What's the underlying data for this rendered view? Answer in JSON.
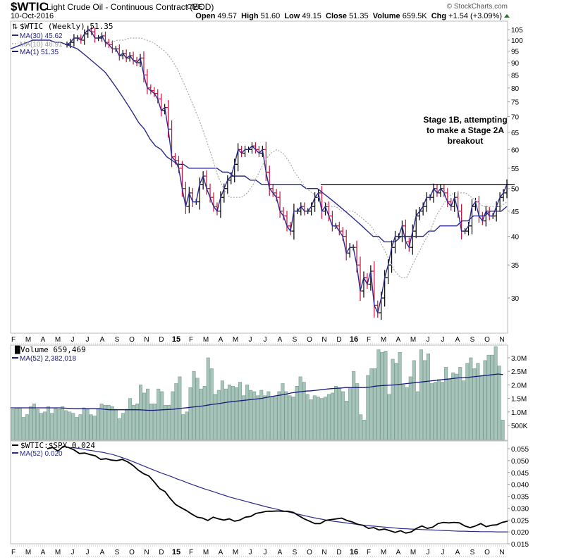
{
  "header": {
    "symbol": "$WTIC",
    "name": "Light Crude Oil - Continuous Contract (EOD)",
    "exchange": "CME",
    "date": "10-Oct-2016",
    "credit": "© StockCharts.com",
    "stats": [
      {
        "label": "Open",
        "value": "49.57"
      },
      {
        "label": "High",
        "value": "51.60"
      },
      {
        "label": "Low",
        "value": "49.15"
      },
      {
        "label": "Close",
        "value": "51.35"
      },
      {
        "label": "Volume",
        "value": "659.5K"
      },
      {
        "label": "Chg",
        "value": "+1.54 (+3.09%)"
      }
    ]
  },
  "colors": {
    "up_bar": "#000000",
    "down_bar": "#c8103c",
    "ma_line": "#2b2b8c",
    "ma10": "#aaaaaa",
    "volume_bar": "#a7c4ba",
    "volume_edge": "#7a9c90",
    "ratio_line": "#000000",
    "ratio_ma": "#2b2b8c"
  },
  "annotation": [
    "Stage 1B, attempting",
    "to make a Stage 2A",
    "breakout"
  ],
  "chart_data": [
    {
      "type": "line",
      "title": "$WTIC (Weekly) 51.35",
      "legend": [
        {
          "name": "$WTIC (Weekly) 51.35"
        },
        {
          "name": "MA(30) 45.62"
        },
        {
          "name": "MA(10) 46.91"
        },
        {
          "name": "MA(1) 51.35"
        }
      ],
      "scale": "log",
      "ylim": [
        26,
        108
      ],
      "yticks": [
        "105",
        "100",
        "95",
        "90",
        "85",
        "80",
        "75",
        "70",
        "65",
        "60",
        "55",
        "50",
        "45",
        "40",
        "35",
        "30"
      ],
      "ytick_values": [
        105,
        100,
        95,
        90,
        85,
        80,
        75,
        70,
        65,
        60,
        55,
        50,
        45,
        40,
        35,
        30
      ],
      "xticks": [
        "F",
        "M",
        "A",
        "M",
        "J",
        "J",
        "A",
        "S",
        "O",
        "N",
        "D",
        "15",
        "F",
        "M",
        "A",
        "M",
        "J",
        "J",
        "A",
        "S",
        "O",
        "N",
        "D",
        "16",
        "F",
        "M",
        "A",
        "M",
        "J",
        "J",
        "A",
        "S",
        "O",
        "N"
      ],
      "resistance": 51,
      "close": [
        98,
        99,
        101,
        101,
        100,
        103,
        105,
        104,
        101,
        101,
        102,
        99,
        98,
        96,
        96,
        93,
        94,
        92,
        93,
        91,
        90,
        92,
        85,
        80,
        79,
        78,
        76,
        72,
        73,
        66,
        58,
        57,
        55,
        50,
        46,
        49,
        47,
        47,
        51,
        53,
        50,
        48,
        46,
        45,
        48,
        50,
        52,
        53,
        56,
        60,
        59,
        60,
        60,
        61,
        60,
        59,
        60,
        54,
        50,
        49,
        48,
        45,
        44,
        42,
        41,
        45,
        45,
        46,
        45,
        45,
        46,
        48,
        49,
        45,
        46,
        44,
        42,
        42,
        41,
        40,
        37,
        38,
        38,
        35,
        31,
        33,
        32,
        34,
        29,
        28,
        30,
        33,
        35,
        38,
        40,
        40,
        42,
        39,
        38,
        41,
        44,
        45,
        46,
        48,
        48,
        50,
        49,
        50,
        49,
        47,
        46,
        48,
        45,
        41,
        41,
        42,
        46,
        47,
        44,
        43,
        45,
        44,
        44,
        46,
        48,
        49,
        51
      ],
      "ma30": [
        96,
        97,
        98,
        99,
        100,
        100,
        100,
        100,
        99,
        99,
        98,
        97,
        96,
        94,
        92,
        90,
        88,
        86,
        83,
        80,
        77,
        74,
        71,
        68,
        66,
        63,
        61,
        60,
        58,
        57,
        56,
        56,
        55,
        55,
        55,
        55,
        55,
        55,
        54,
        54,
        53,
        53,
        53,
        52,
        52,
        51,
        51,
        51,
        51,
        51,
        51,
        51,
        51,
        50,
        50,
        50,
        49,
        48,
        47,
        46,
        45,
        44,
        43,
        42,
        41,
        40,
        40,
        39,
        39,
        39,
        40,
        40,
        40,
        40,
        40,
        41,
        41,
        42,
        42,
        42,
        42,
        43,
        43,
        44,
        44,
        44,
        45,
        45,
        45,
        46
      ],
      "ma10": [
        98,
        99,
        100,
        100,
        101,
        101,
        101,
        100,
        99,
        97,
        95,
        92,
        88,
        83,
        78,
        73,
        68,
        63,
        58,
        53,
        50,
        48,
        48,
        48,
        49,
        51,
        54,
        57,
        59,
        60,
        59,
        57,
        54,
        52,
        50,
        49,
        48,
        47,
        46,
        46,
        45,
        45,
        45,
        44,
        43,
        42,
        40,
        38,
        36,
        34,
        33,
        33,
        35,
        37,
        39,
        41,
        44,
        46,
        48,
        49,
        49,
        49,
        48,
        47,
        46,
        46,
        46,
        46,
        47
      ]
    },
    {
      "type": "bar",
      "title": "Volume 659,469",
      "legend": [
        {
          "name": "Volume 659,469"
        },
        {
          "name": "MA(52) 2,382,018"
        }
      ],
      "yticks": [
        "3.0M",
        "2.5M",
        "2.0M",
        "1.5M",
        "1.0M",
        "500K"
      ],
      "ytick_values": [
        3000000,
        2500000,
        2000000,
        1500000,
        1000000,
        500000
      ],
      "ylim": [
        0,
        3500000
      ],
      "values": [
        1.1,
        1.15,
        1.15,
        0.8,
        0.9,
        1.2,
        1.3,
        1.1,
        0.95,
        1.0,
        1.2,
        0.95,
        1.15,
        1.1,
        1.2,
        1.05,
        1.0,
        0.95,
        0.8,
        0.9,
        1.15,
        1.1,
        0.9,
        0.85,
        1.1,
        1.3,
        1.25,
        1.25,
        1.2,
        1.1,
        0.75,
        0.95,
        1.1,
        1.5,
        1.25,
        1.3,
        2.0,
        1.7,
        1.85,
        1.3,
        1.3,
        1.85,
        1.75,
        1.25,
        1.25,
        1.75,
        2.05,
        2.3,
        0.9,
        1.0,
        1.9,
        2.5,
        2.25,
        1.85,
        1.95,
        3.0,
        2.6,
        1.65,
        1.8,
        2.15,
        1.85,
        2.0,
        1.95,
        1.9,
        2.1,
        1.6,
        2.0,
        1.8,
        1.75,
        1.6,
        1.8,
        1.6,
        1.75,
        1.55,
        1.55,
        1.75,
        2.05,
        1.75,
        1.6,
        1.55,
        1.95,
        2.3,
        2.1,
        1.65,
        1.45,
        1.6,
        1.55,
        1.5,
        1.55,
        1.65,
        1.7,
        1.95,
        1.9,
        1.75,
        1.4,
        1.9,
        2.5,
        2.05,
        0.9,
        0.7,
        2.35,
        2.6,
        2.6,
        3.3,
        3.2,
        3.25,
        1.65,
        2.95,
        2.8,
        3.2,
        2.0,
        1.9,
        2.3,
        2.9,
        1.75,
        3.3,
        2.9,
        3.15,
        2.05,
        2.1,
        2.2,
        2.1,
        2.65,
        2.2,
        2.45,
        2.4,
        2.65,
        2.15,
        2.8,
        3.0,
        2.6,
        2.8,
        2.35,
        2.9,
        3.1,
        3.1,
        3.5,
        2.7,
        0.7
      ],
      "ma52": [
        1.15,
        1.15,
        1.15,
        1.15,
        1.15,
        1.15,
        1.15,
        1.15,
        1.15,
        1.15,
        1.15,
        1.14,
        1.13,
        1.12,
        1.12,
        1.12,
        1.12,
        1.12,
        1.12,
        1.1,
        1.08,
        1.08,
        1.08,
        1.08,
        1.08,
        1.08,
        1.08,
        1.07,
        1.06,
        1.06,
        1.07,
        1.08,
        1.09,
        1.1,
        1.12,
        1.14,
        1.16,
        1.18,
        1.2,
        1.22,
        1.25,
        1.28,
        1.3,
        1.33,
        1.36,
        1.38,
        1.4,
        1.42,
        1.44,
        1.46,
        1.48,
        1.5,
        1.54,
        1.57,
        1.6,
        1.63,
        1.66,
        1.7,
        1.73,
        1.75,
        1.77,
        1.78,
        1.8,
        1.82,
        1.84,
        1.86,
        1.87,
        1.88,
        1.9,
        1.9,
        1.9,
        1.9,
        1.9,
        1.92,
        1.95,
        1.97,
        1.98,
        1.99,
        2.0,
        2.02,
        2.04,
        2.06,
        2.08,
        2.1,
        2.12,
        2.14,
        2.16,
        2.18,
        2.2,
        2.22,
        2.24,
        2.26,
        2.27,
        2.28,
        2.3,
        2.32,
        2.34,
        2.36,
        2.38,
        2.4,
        2.38
      ]
    },
    {
      "type": "line",
      "title": "$WTIC:$SPX 0.024",
      "legend": [
        {
          "name": "$WTIC:$SPX 0.024"
        },
        {
          "name": "MA(52) 0.020"
        }
      ],
      "yticks": [
        "0.055",
        "0.050",
        "0.045",
        "0.040",
        "0.035",
        "0.030",
        "0.025",
        "0.020",
        "0.015"
      ],
      "ytick_values": [
        0.055,
        0.05,
        0.045,
        0.04,
        0.035,
        0.03,
        0.025,
        0.02,
        0.015
      ],
      "ylim": [
        0.0145,
        0.0565
      ],
      "ratio": [
        0.055,
        0.0555,
        0.054,
        0.056,
        0.0555,
        0.0545,
        0.053,
        0.0532,
        0.0525,
        0.052,
        0.0505,
        0.0508,
        0.0502,
        0.05,
        0.0505,
        0.0495,
        0.048,
        0.046,
        0.0445,
        0.0435,
        0.041,
        0.0382,
        0.037,
        0.034,
        0.0315,
        0.0302,
        0.029,
        0.0275,
        0.0262,
        0.0258,
        0.0248,
        0.0262,
        0.0255,
        0.025,
        0.0255,
        0.0245,
        0.025,
        0.0262,
        0.0265,
        0.0278,
        0.0282,
        0.0287,
        0.0287,
        0.0288,
        0.0287,
        0.0287,
        0.0282,
        0.0268,
        0.0255,
        0.0245,
        0.0235,
        0.0235,
        0.0248,
        0.0252,
        0.0255,
        0.0258,
        0.0248,
        0.0242,
        0.0232,
        0.0228,
        0.0215,
        0.0218,
        0.0208,
        0.0212,
        0.0205,
        0.0198,
        0.0205,
        0.0195,
        0.02,
        0.0215,
        0.0225,
        0.0215,
        0.022,
        0.0235,
        0.024,
        0.0238,
        0.024,
        0.0238,
        0.0225,
        0.0218,
        0.0225,
        0.0235,
        0.0222,
        0.0228,
        0.023,
        0.024,
        0.0245
      ],
      "ma52": [
        0.0555,
        0.0553,
        0.055,
        0.0545,
        0.0542,
        0.0538,
        0.0535,
        0.053,
        0.0525,
        0.0518,
        0.051,
        0.0502,
        0.0493,
        0.0484,
        0.0475,
        0.0466,
        0.0457,
        0.0448,
        0.044,
        0.0432,
        0.0423,
        0.0415,
        0.0406,
        0.0398,
        0.039,
        0.0382,
        0.0375,
        0.0368,
        0.036,
        0.0353,
        0.0346,
        0.034,
        0.0334,
        0.0328,
        0.0322,
        0.0316,
        0.031,
        0.0304,
        0.0299,
        0.0294,
        0.0288,
        0.0283,
        0.0278,
        0.0273,
        0.0268,
        0.0263,
        0.0258,
        0.0254,
        0.025,
        0.0246,
        0.0243,
        0.024,
        0.0237,
        0.0234,
        0.0231,
        0.0228,
        0.0226,
        0.0224,
        0.0222,
        0.022,
        0.0218,
        0.0216,
        0.0214,
        0.0213,
        0.0212,
        0.0211,
        0.021,
        0.0209,
        0.0208,
        0.0207,
        0.0206,
        0.0205,
        0.0204,
        0.0203,
        0.0203,
        0.0202,
        0.0202,
        0.0201,
        0.0201,
        0.0201,
        0.02,
        0.02,
        0.02
      ]
    }
  ]
}
